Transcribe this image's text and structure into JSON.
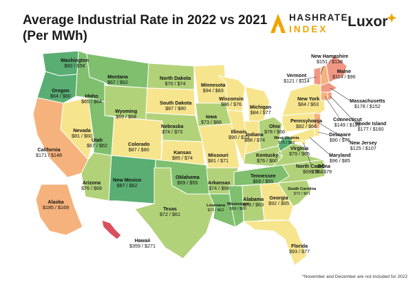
{
  "title_line1": "Average Industrial Rate in 2022 vs 2021",
  "title_line2": "(Per MWh)",
  "logos": {
    "hashrate_line1": "HASHRATE",
    "hashrate_line2": "INDEX",
    "luxor": "Luxor",
    "hashrate_icon": "hashrate-index-logo",
    "luxor_icon": "luxor-logo-mark"
  },
  "footnote": "*November and December are not included for 2022",
  "colors": {
    "dark_green": "#5aae73",
    "green": "#7fbf6e",
    "light_green": "#b2d27a",
    "yellow": "#f7e58e",
    "orange": "#f6b27c",
    "salmon": "#f19884",
    "red": "#d9505c",
    "border": "#ffffff"
  },
  "states": [
    {
      "name": "Washington",
      "rate2022": "$60",
      "rate2021": "$58"
    },
    {
      "name": "Oregon",
      "rate2022": "$64",
      "rate2021": "$60"
    },
    {
      "name": "California",
      "rate2022": "$171",
      "rate2021": "$148"
    },
    {
      "name": "Nevada",
      "rate2022": "$81",
      "rate2021": "$60"
    },
    {
      "name": "Idaho",
      "rate2022": "$65",
      "rate2021": "$64"
    },
    {
      "name": "Montana",
      "rate2022": "$67",
      "rate2021": "$62"
    },
    {
      "name": "Wyoming",
      "rate2022": "$69",
      "rate2021": "$68"
    },
    {
      "name": "Utah",
      "rate2022": "$67",
      "rate2021": "$62"
    },
    {
      "name": "Arizona",
      "rate2022": "$76",
      "rate2021": "$68"
    },
    {
      "name": "Colorado",
      "rate2022": "$87",
      "rate2021": "$80"
    },
    {
      "name": "New Mexico",
      "rate2022": "$87",
      "rate2021": "$62"
    },
    {
      "name": "North Dakota",
      "rate2022": "$70",
      "rate2021": "$74"
    },
    {
      "name": "South Dakota",
      "rate2022": "$87",
      "rate2021": "$80"
    },
    {
      "name": "Nebraska",
      "rate2022": "$74",
      "rate2021": "$73"
    },
    {
      "name": "Kansas",
      "rate2022": "$85",
      "rate2021": "$74"
    },
    {
      "name": "Oklahoma",
      "rate2022": "$69",
      "rate2021": "$55"
    },
    {
      "name": "Texas",
      "rate2022": "$72",
      "rate2021": "$61"
    },
    {
      "name": "Minnesota",
      "rate2022": "$94",
      "rate2021": "$83"
    },
    {
      "name": "Iowa",
      "rate2022": "$73",
      "rate2021": "$66"
    },
    {
      "name": "Missouri",
      "rate2022": "$81",
      "rate2021": "$71"
    },
    {
      "name": "Arkansas",
      "rate2022": "$74",
      "rate2021": "$66"
    },
    {
      "name": "Louisiana",
      "rate2022": "$73",
      "rate2021": "$62"
    },
    {
      "name": "Wisconsin",
      "rate2022": "$86",
      "rate2021": "$76"
    },
    {
      "name": "Illinois",
      "rate2022": "$90",
      "rate2021": "$73"
    },
    {
      "name": "Michigan",
      "rate2022": "$84",
      "rate2021": "$77"
    },
    {
      "name": "Indiana",
      "rate2022": "$88",
      "rate2021": "$74"
    },
    {
      "name": "Ohio",
      "rate2022": "$78",
      "rate2021": "$66"
    },
    {
      "name": "Kentucky",
      "rate2022": "$76",
      "rate2021": "$60"
    },
    {
      "name": "Tennessee",
      "rate2022": "$69",
      "rate2021": "$55"
    },
    {
      "name": "Mississippi",
      "rate2022": "$69",
      "rate2021": "$60"
    },
    {
      "name": "Alabama",
      "rate2022": "$78",
      "rate2021": "$63"
    },
    {
      "name": "Georgia",
      "rate2022": "$92",
      "rate2021": "$65"
    },
    {
      "name": "Florida",
      "rate2022": "$93",
      "rate2021": "$77"
    },
    {
      "name": "South Carolina",
      "rate2022": "$72",
      "rate2021": "$61"
    },
    {
      "name": "North Carolina",
      "rate2022": "$69",
      "rate2021": "$61"
    },
    {
      "name": "Virginia",
      "rate2022": "$79",
      "rate2021": "$65"
    },
    {
      "name": "West Virginia",
      "rate2022": "$70",
      "rate2021": "$62"
    },
    {
      "name": "Pennsylvania",
      "rate2022": "$82",
      "rate2021": "$66"
    },
    {
      "name": "New York",
      "rate2022": "$84",
      "rate2021": "$63"
    },
    {
      "name": "Vermont",
      "rate2022": "$121",
      "rate2021": "$114"
    },
    {
      "name": "New Hampshire",
      "rate2022": "$151",
      "rate2021": "$138"
    },
    {
      "name": "Maine",
      "rate2022": "$114",
      "rate2021": "$96"
    },
    {
      "name": "Massachusetts",
      "rate2022": "$178",
      "rate2021": "$152"
    },
    {
      "name": "Connecticut",
      "rate2022": "$149",
      "rate2021": "$128"
    },
    {
      "name": "Rhode Island",
      "rate2022": "$177",
      "rate2021": "$160"
    },
    {
      "name": "New Jersey",
      "rate2022": "$125",
      "rate2021": "$107"
    },
    {
      "name": "Delaware",
      "rate2022": "$90",
      "rate2021": "$76"
    },
    {
      "name": "Maryland",
      "rate2022": "$96",
      "rate2021": "$85"
    },
    {
      "name": "DC",
      "rate2022": "$75",
      "rate2021": "$79"
    },
    {
      "name": "Alaska",
      "rate2022": "$185",
      "rate2021": "$169"
    },
    {
      "name": "Hawaii",
      "rate2022": "$359",
      "rate2021": "$271"
    }
  ]
}
